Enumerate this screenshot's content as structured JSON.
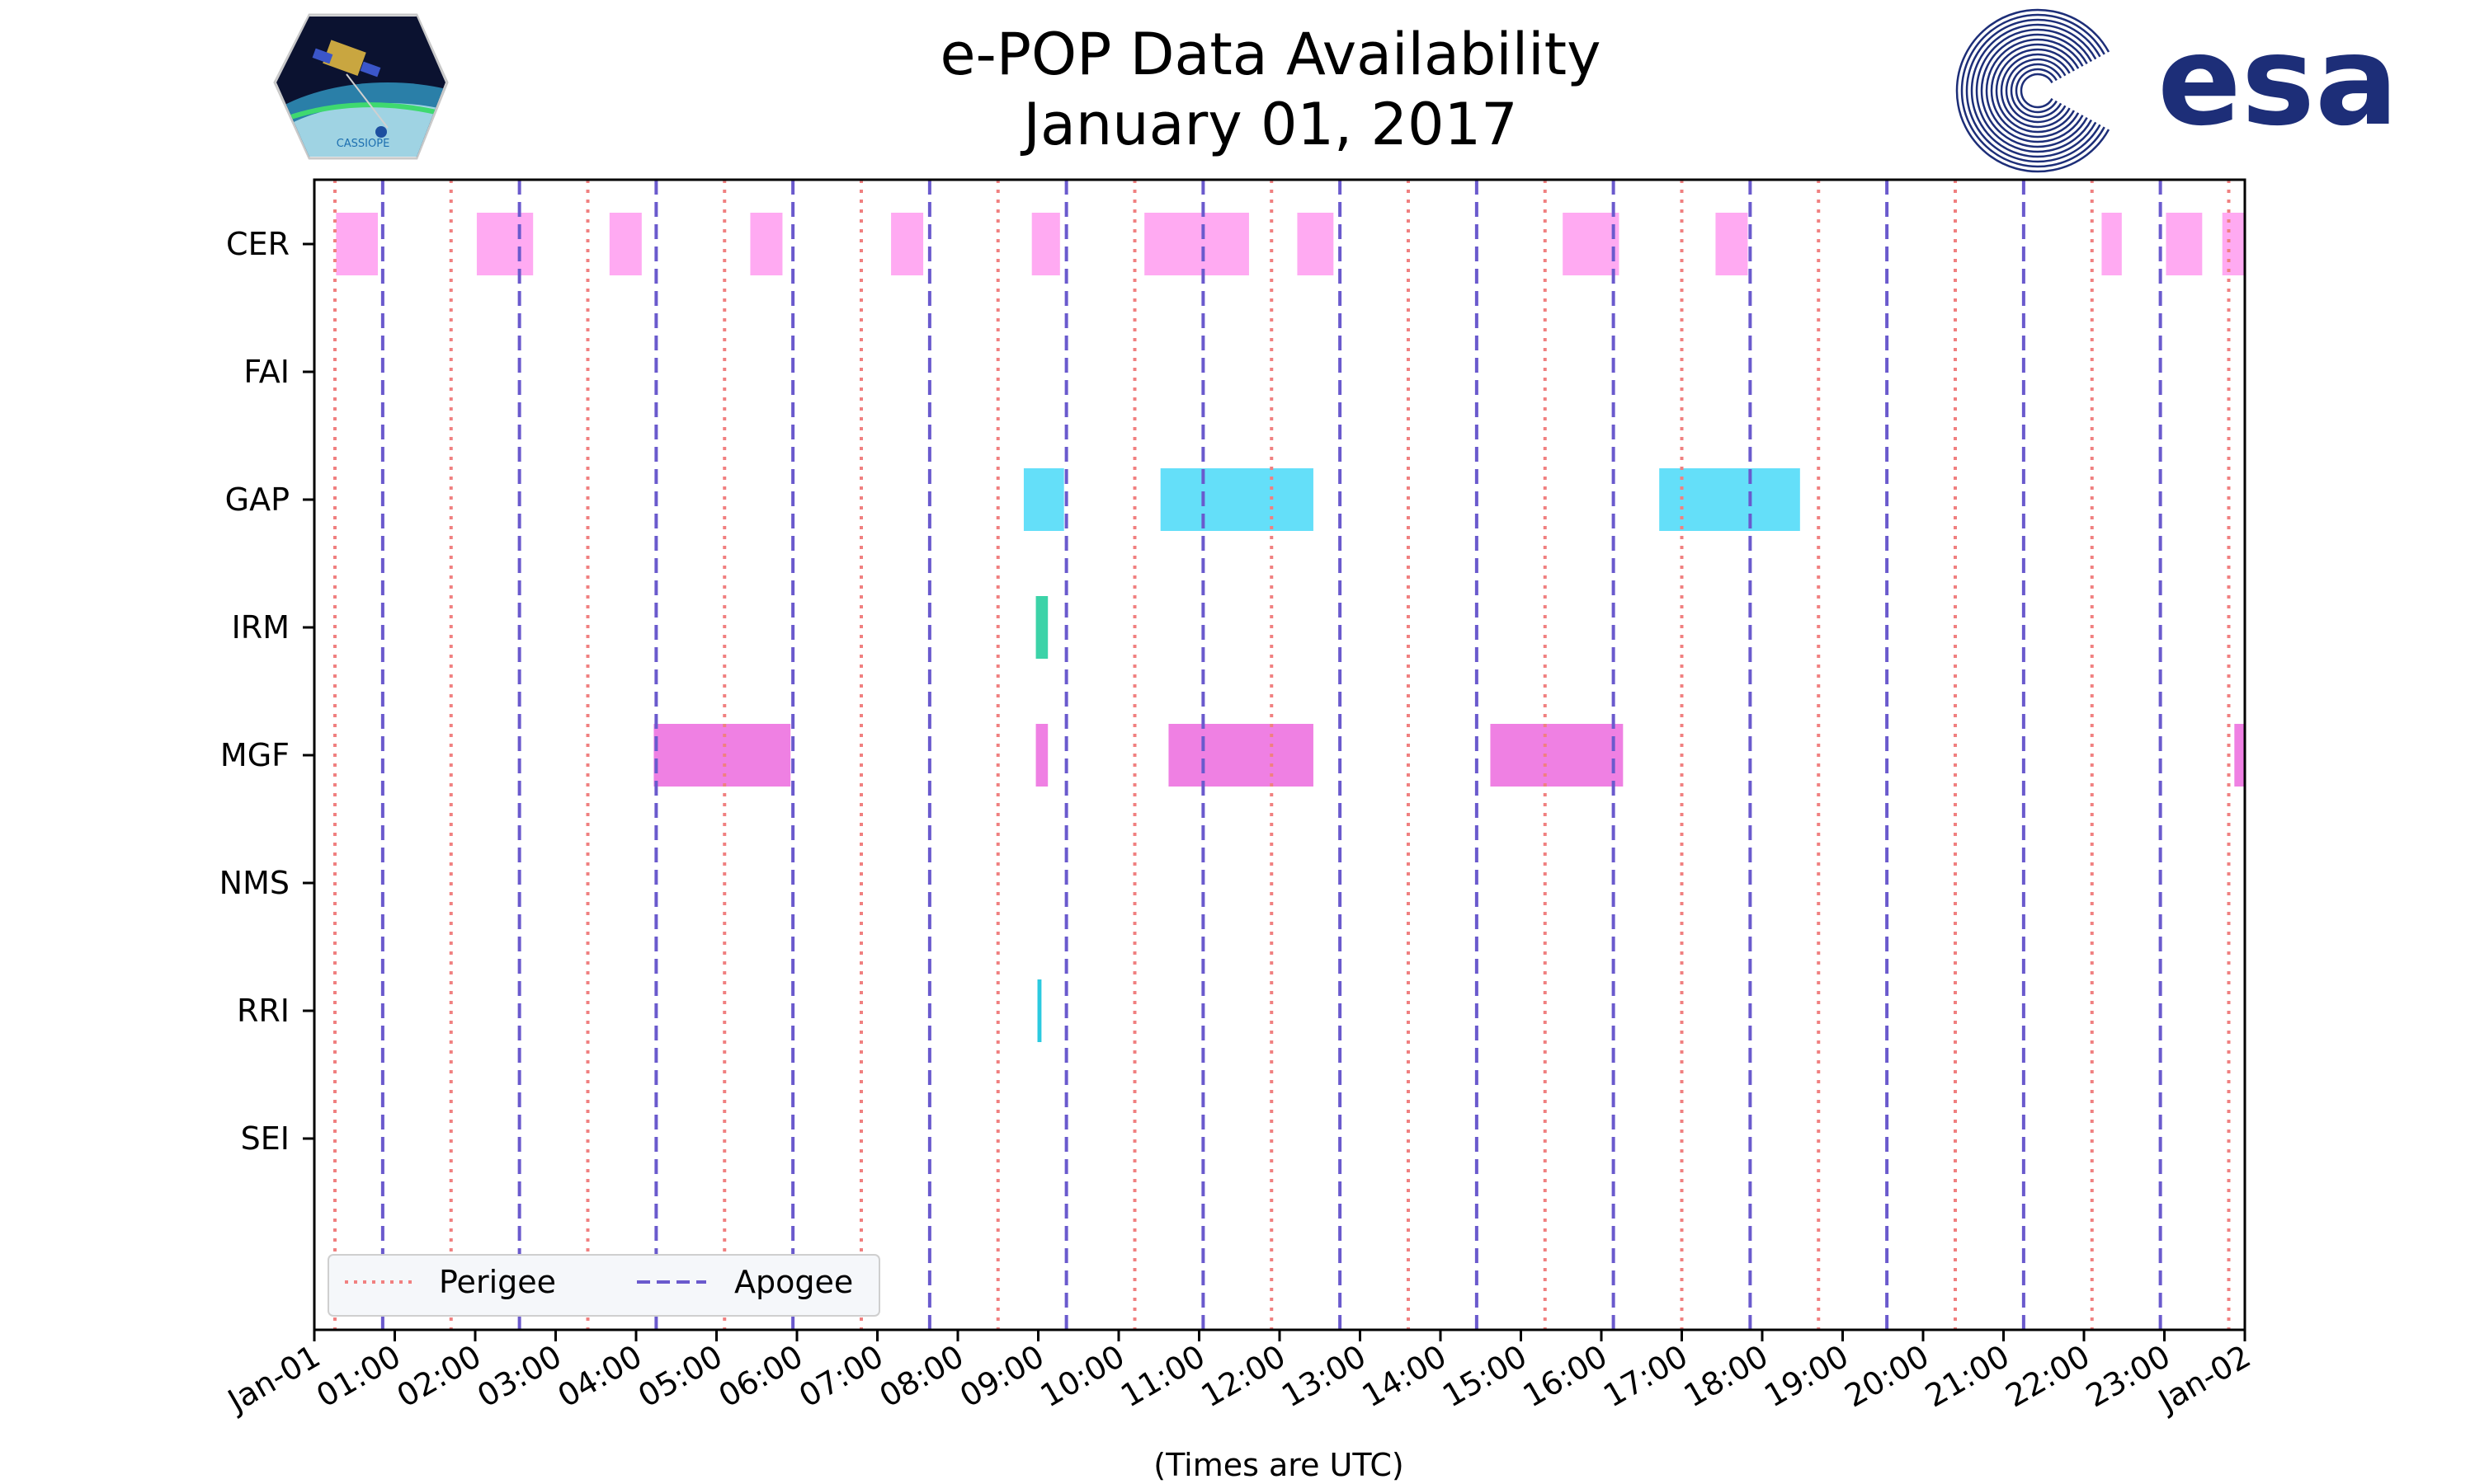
{
  "chart_data": {
    "type": "timeline",
    "title": "e-POP Data Availability",
    "subtitle": "January 01, 2017",
    "xlabel": "(Times are UTC)",
    "xlim_hours": [
      0,
      24
    ],
    "x_ticks": [
      {
        "h": 0,
        "label": "Jan-01"
      },
      {
        "h": 1,
        "label": "01:00"
      },
      {
        "h": 2,
        "label": "02:00"
      },
      {
        "h": 3,
        "label": "03:00"
      },
      {
        "h": 4,
        "label": "04:00"
      },
      {
        "h": 5,
        "label": "05:00"
      },
      {
        "h": 6,
        "label": "06:00"
      },
      {
        "h": 7,
        "label": "07:00"
      },
      {
        "h": 8,
        "label": "08:00"
      },
      {
        "h": 9,
        "label": "09:00"
      },
      {
        "h": 10,
        "label": "10:00"
      },
      {
        "h": 11,
        "label": "11:00"
      },
      {
        "h": 12,
        "label": "12:00"
      },
      {
        "h": 13,
        "label": "13:00"
      },
      {
        "h": 14,
        "label": "14:00"
      },
      {
        "h": 15,
        "label": "15:00"
      },
      {
        "h": 16,
        "label": "16:00"
      },
      {
        "h": 17,
        "label": "17:00"
      },
      {
        "h": 18,
        "label": "18:00"
      },
      {
        "h": 19,
        "label": "19:00"
      },
      {
        "h": 20,
        "label": "20:00"
      },
      {
        "h": 21,
        "label": "21:00"
      },
      {
        "h": 22,
        "label": "22:00"
      },
      {
        "h": 23,
        "label": "23:00"
      },
      {
        "h": 24,
        "label": "Jan-02"
      }
    ],
    "instruments": [
      {
        "name": "CER",
        "color": "#ffaaf2",
        "intervals": [
          [
            0.27,
            0.79
          ],
          [
            2.02,
            2.72
          ],
          [
            3.67,
            4.07
          ],
          [
            5.42,
            5.82
          ],
          [
            7.17,
            7.57
          ],
          [
            8.92,
            9.27
          ],
          [
            10.32,
            11.62
          ],
          [
            12.22,
            12.67
          ],
          [
            15.52,
            16.22
          ],
          [
            17.42,
            17.82
          ],
          [
            22.22,
            22.47
          ],
          [
            23.02,
            23.47
          ],
          [
            23.72,
            24.0
          ]
        ]
      },
      {
        "name": "FAI",
        "color": "#ffaaf2",
        "intervals": []
      },
      {
        "name": "GAP",
        "color": "#64dff9",
        "intervals": [
          [
            8.82,
            9.32
          ],
          [
            10.52,
            12.42
          ],
          [
            16.72,
            18.47
          ]
        ]
      },
      {
        "name": "IRM",
        "color": "#3cd3a8",
        "intervals": [
          [
            8.97,
            9.12
          ]
        ]
      },
      {
        "name": "MGF",
        "color": "#ef80e3",
        "intervals": [
          [
            4.22,
            5.92
          ],
          [
            8.97,
            9.12
          ],
          [
            10.62,
            12.42
          ],
          [
            14.62,
            16.27
          ],
          [
            23.87,
            24.0
          ]
        ]
      },
      {
        "name": "NMS",
        "color": "#ef80e3",
        "intervals": []
      },
      {
        "name": "RRI",
        "color": "#2ccae0",
        "intervals": [
          [
            8.99,
            9.04
          ]
        ]
      },
      {
        "name": "SEI",
        "color": "#2ccae0",
        "intervals": []
      }
    ],
    "perigee_hours": [
      0.0,
      1.7,
      3.4,
      5.1,
      6.8,
      8.5,
      10.2,
      11.9,
      13.6,
      15.3,
      17.0,
      18.7,
      20.4,
      22.1,
      23.8
    ],
    "apogee_hours": [
      0.85,
      2.55,
      4.25,
      5.95,
      7.65,
      9.35,
      11.05,
      12.75,
      14.45,
      16.15,
      17.85,
      19.55,
      21.25,
      22.95
    ],
    "legend": [
      {
        "label": "Perigee",
        "color": "#f08080",
        "style": "dotted"
      },
      {
        "label": "Apogee",
        "color": "#6a5acd",
        "style": "dashed"
      }
    ],
    "legend_position": "lower-left",
    "colors": {
      "perigee": "#f08080",
      "apogee": "#6a5acd",
      "axis": "#000000",
      "legend_bg": "#f5f7fa"
    }
  },
  "logos": {
    "left_caption": "CASSIOPE",
    "right_text": "esa"
  }
}
